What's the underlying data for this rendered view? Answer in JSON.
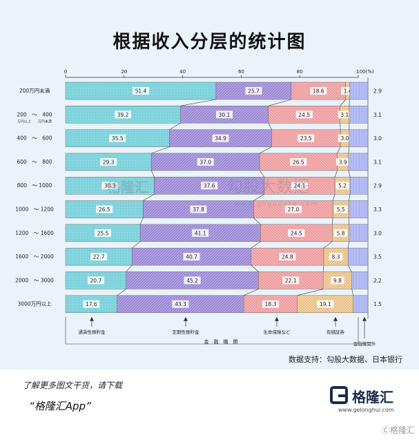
{
  "title": "根据收入分层的统计图",
  "source": "数据支持：勾股大数据、日本银行",
  "footer": {
    "promo_line1": "了解更多图文干货，请下载",
    "promo_line2": "“格隆汇App”",
    "brand_name": "格隆汇",
    "brand_url": "www.gelonghui.com",
    "watermark": "Ⓒ格隆汇"
  },
  "watermarks": [
    "格隆汇",
    "勾股大数据",
    "www.gogudata.com"
  ],
  "chart_data": {
    "type": "bar",
    "orientation": "horizontal",
    "stacked": true,
    "xlim": [
      0,
      100
    ],
    "x_ticks": [
      "0",
      "20",
      "40",
      "60",
      "80",
      "100"
    ],
    "x_unit": "(%)",
    "categories": [
      [
        "200万円未満"
      ],
      [
        "200　～　400",
        "万円以上　　万円未満"
      ],
      [
        "400　～　600"
      ],
      [
        "600　～　800"
      ],
      [
        "800　～ 1000"
      ],
      [
        "1000　～ 1200"
      ],
      [
        "1200　～ 1600"
      ],
      [
        "1600　～ 2000"
      ],
      [
        "2000　～ 3000"
      ],
      [
        "3000万円以上"
      ]
    ],
    "series": [
      {
        "name": "通貨性預貯金",
        "color": "#7fd3dc",
        "values": [
          51.4,
          39.2,
          35.5,
          29.3,
          30.3,
          26.5,
          25.5,
          22.7,
          20.7,
          17.6
        ]
      },
      {
        "name": "定期性預貯金",
        "color": "#9a86d6",
        "values": [
          25.7,
          30.1,
          34.9,
          37.0,
          37.6,
          37.8,
          41.1,
          40.7,
          45.2,
          43.3
        ]
      },
      {
        "name": "生命保険など",
        "color": "#ee9a9c",
        "values": [
          18.6,
          24.5,
          23.5,
          26.5,
          24.1,
          27.0,
          24.5,
          24.8,
          22.1,
          18.3
        ]
      },
      {
        "name": "有価証券",
        "color": "#e8b877",
        "values": [
          1.4,
          3.1,
          3.0,
          3.9,
          5.2,
          5.5,
          5.8,
          8.3,
          9.8,
          19.1
        ]
      },
      {
        "name": "金融機関外",
        "color": "#aab3f2",
        "values": [
          2.9,
          3.1,
          3.0,
          3.1,
          2.9,
          3.3,
          3.0,
          3.5,
          2.2,
          1.5
        ]
      }
    ],
    "group_label": "金　融　機　関"
  }
}
